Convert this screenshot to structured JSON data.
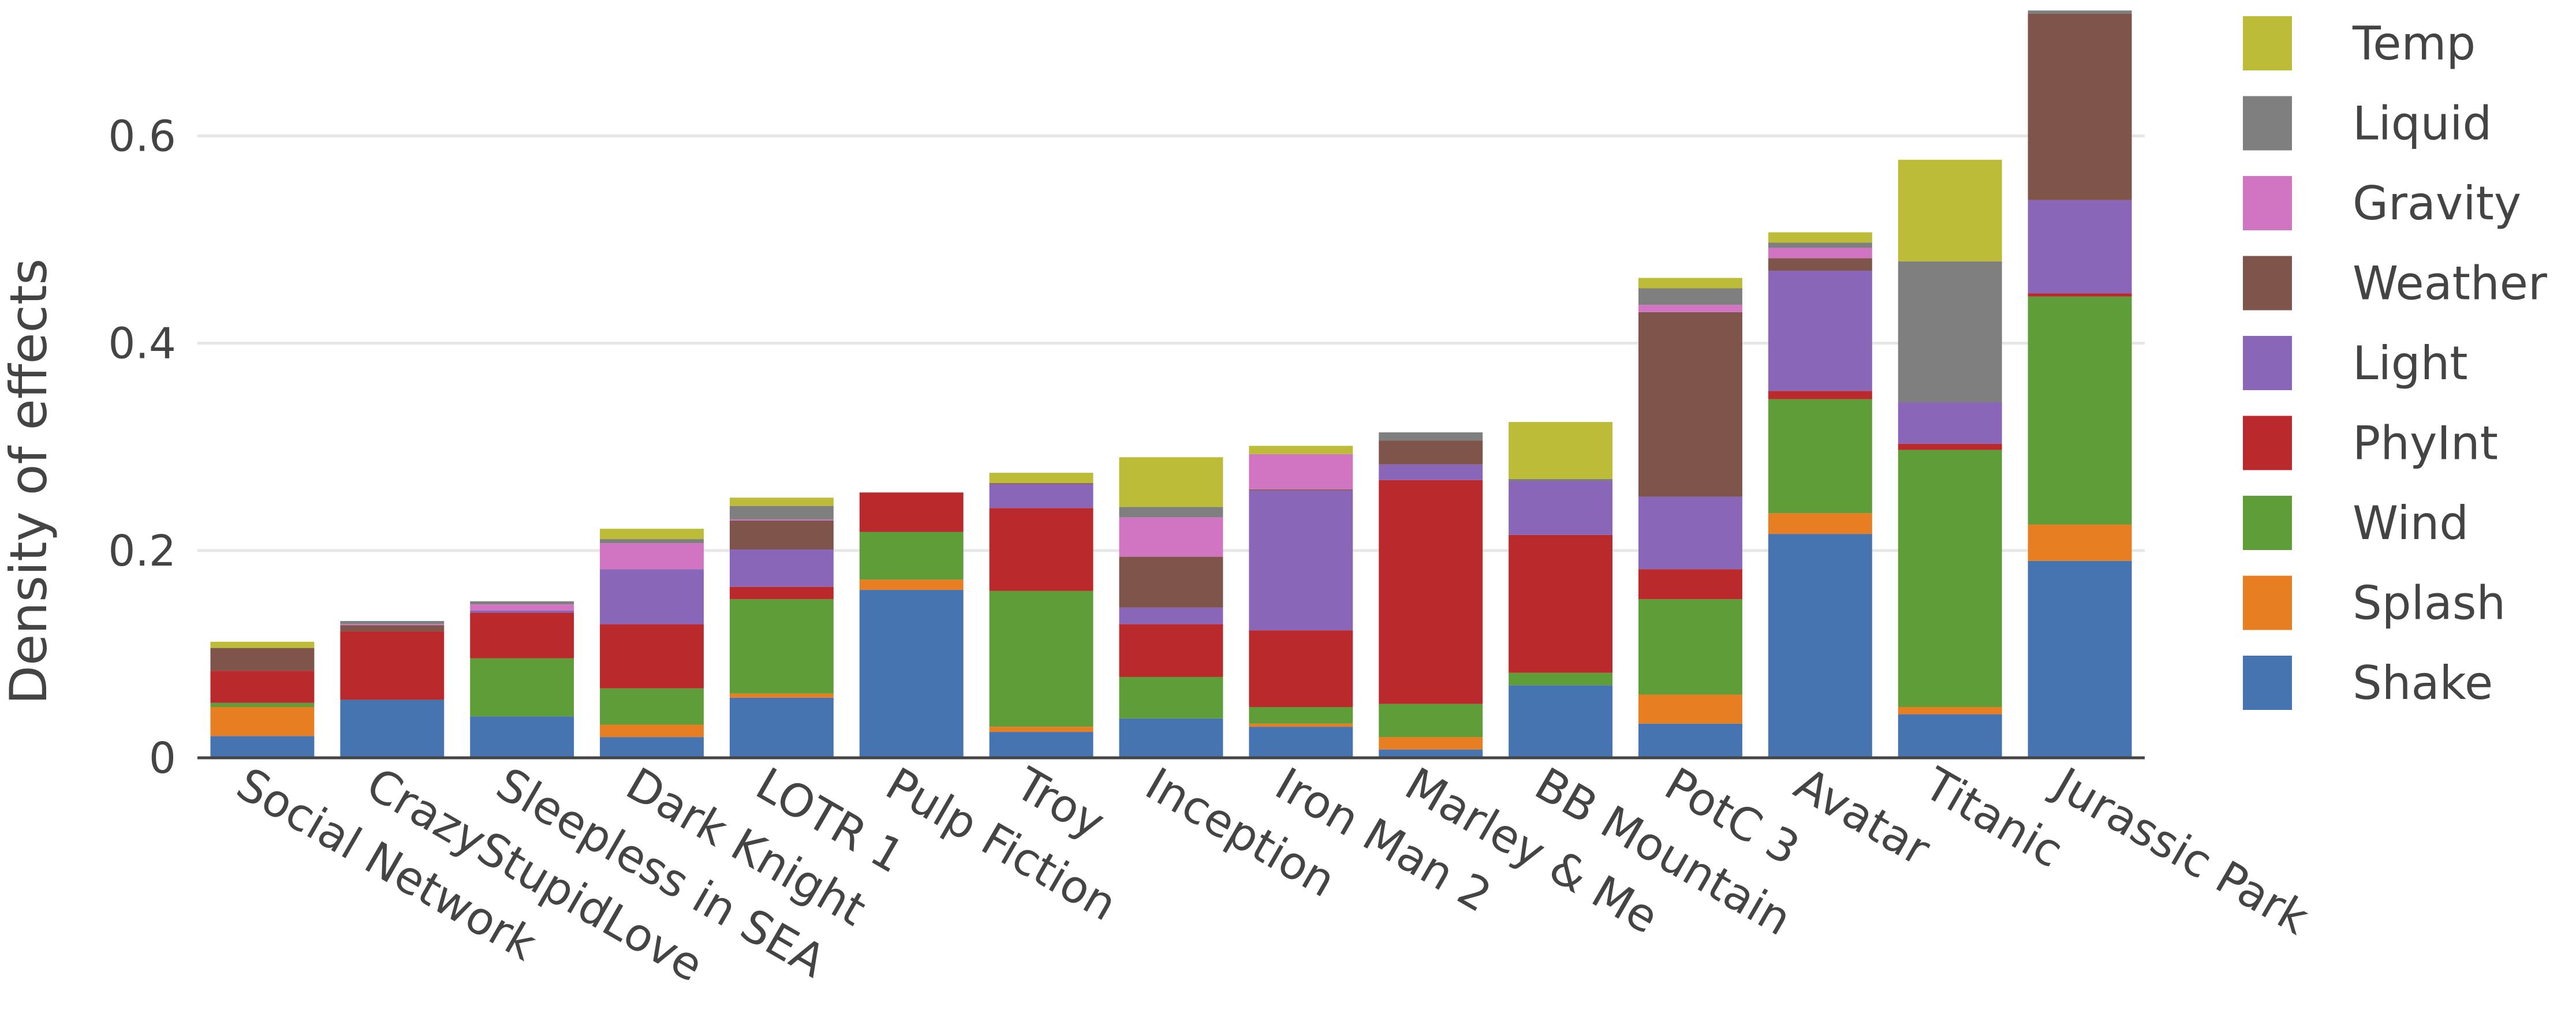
{
  "chart_data": {
    "type": "bar",
    "stacked": true,
    "title": "",
    "xlabel": "",
    "ylabel": "Density of effects",
    "ylim": [
      0,
      0.72
    ],
    "yticks": [
      0,
      0.2,
      0.4,
      0.6
    ],
    "ytick_labels": [
      "0",
      "0.2",
      "0.4",
      "0.6"
    ],
    "grid": "horizontal",
    "legend_position": "right",
    "categories": [
      "Social Network",
      "CrazyStupidLove",
      "Sleepless in SEA",
      "Dark Knight",
      "LOTR 1",
      "Pulp Fiction",
      "Troy",
      "Inception",
      "Iron Man 2",
      "Marley & Me",
      "BB Mountain",
      "PotC 3",
      "Avatar",
      "Titanic",
      "Jurassic Park"
    ],
    "series": [
      {
        "name": "Shake",
        "color": "#4674b0",
        "values": [
          0.021,
          0.056,
          0.04,
          0.02,
          0.058,
          0.162,
          0.025,
          0.038,
          0.03,
          0.008,
          0.07,
          0.033,
          0.216,
          0.042,
          0.19
        ]
      },
      {
        "name": "Splash",
        "color": "#e77e22",
        "values": [
          0.028,
          0.0,
          0.0,
          0.012,
          0.004,
          0.01,
          0.005,
          0.0,
          0.003,
          0.012,
          0.0,
          0.028,
          0.02,
          0.007,
          0.035
        ]
      },
      {
        "name": "Wind",
        "color": "#5f9d39",
        "values": [
          0.004,
          0.0,
          0.056,
          0.035,
          0.091,
          0.046,
          0.131,
          0.04,
          0.016,
          0.032,
          0.012,
          0.092,
          0.11,
          0.248,
          0.22
        ]
      },
      {
        "name": "PhyInt",
        "color": "#ba2a2d",
        "values": [
          0.031,
          0.066,
          0.044,
          0.062,
          0.012,
          0.038,
          0.08,
          0.051,
          0.074,
          0.216,
          0.133,
          0.029,
          0.008,
          0.006,
          0.003
        ]
      },
      {
        "name": "Light",
        "color": "#8966b7",
        "values": [
          0.0,
          0.0,
          0.002,
          0.053,
          0.036,
          0.0,
          0.023,
          0.016,
          0.135,
          0.015,
          0.052,
          0.07,
          0.116,
          0.04,
          0.09
        ]
      },
      {
        "name": "Weather",
        "color": "#7f544b",
        "values": [
          0.022,
          0.006,
          0.0,
          0.0,
          0.028,
          0.0,
          0.001,
          0.049,
          0.001,
          0.023,
          0.0,
          0.178,
          0.012,
          0.0,
          0.18
        ]
      },
      {
        "name": "Gravity",
        "color": "#d175c3",
        "values": [
          0.0,
          0.001,
          0.006,
          0.025,
          0.001,
          0.0,
          0.0,
          0.038,
          0.034,
          0.0,
          0.0,
          0.007,
          0.01,
          0.0,
          0.0
        ]
      },
      {
        "name": "Liquid",
        "color": "#7f7f7f",
        "values": [
          0.0,
          0.003,
          0.003,
          0.004,
          0.013,
          0.0,
          0.0,
          0.01,
          0.0,
          0.008,
          0.002,
          0.016,
          0.005,
          0.136,
          0.003
        ]
      },
      {
        "name": "Temp",
        "color": "#bcbc38",
        "values": [
          0.006,
          0.0,
          0.0,
          0.01,
          0.008,
          0.0,
          0.01,
          0.048,
          0.008,
          0.0,
          0.055,
          0.01,
          0.01,
          0.098,
          0.0
        ]
      }
    ]
  }
}
